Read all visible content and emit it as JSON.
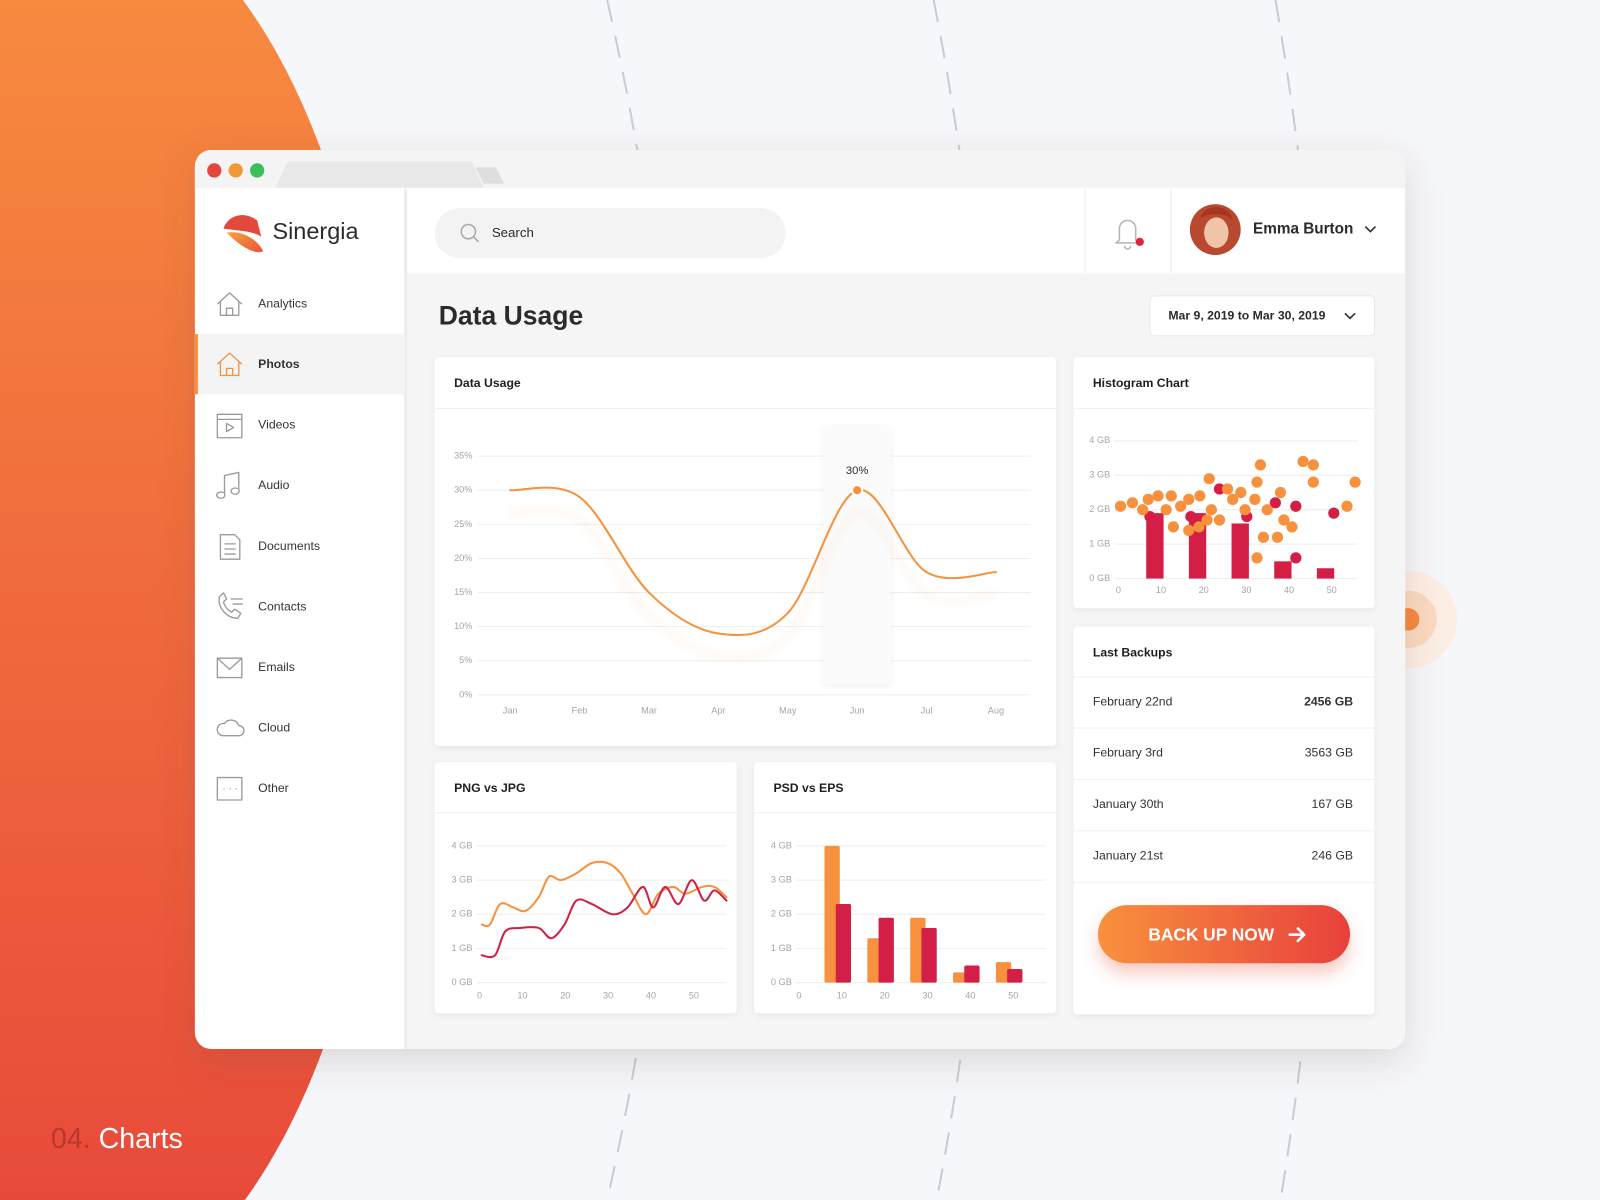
{
  "logo": "Sinergia",
  "nav": [
    {
      "label": "Analytics",
      "active": false
    },
    {
      "label": "Photos",
      "active": true
    },
    {
      "label": "Videos",
      "active": false
    },
    {
      "label": "Audio",
      "active": false
    },
    {
      "label": "Documents",
      "active": false
    },
    {
      "label": "Contacts",
      "active": false
    },
    {
      "label": "Emails",
      "active": false
    },
    {
      "label": "Cloud",
      "active": false
    },
    {
      "label": "Other",
      "active": false
    }
  ],
  "search": "Search",
  "user": "Emma Burton",
  "page_title": "Data Usage",
  "date_range": "Mar 9, 2019 to Mar 30, 2019",
  "backups": {
    "title": "Last Backups",
    "rows": [
      {
        "date": "February 22nd",
        "size": "2456 GB",
        "bold": true
      },
      {
        "date": "February 3rd",
        "size": "3563 GB",
        "bold": false
      },
      {
        "date": "January 30th",
        "size": "167 GB",
        "bold": false
      },
      {
        "date": "January 21st",
        "size": "246 GB",
        "bold": false
      }
    ]
  },
  "button": "BACK UP NOW",
  "footer": {
    "number": "04.",
    "label": "Charts"
  },
  "chart_data": [
    {
      "type": "line",
      "title": "Data Usage",
      "categories": [
        "Jan",
        "Feb",
        "Mar",
        "Apr",
        "May",
        "Jun",
        "Jul",
        "Aug"
      ],
      "series": [
        {
          "color": "#f7913d",
          "values": [
            30,
            29,
            15,
            9,
            12,
            30,
            18,
            18
          ],
          "value_labels": [
            null,
            null,
            null,
            null,
            null,
            "30%",
            null,
            null
          ]
        }
      ],
      "ylim": [
        0,
        35
      ],
      "yticks": [
        {
          "value": 0,
          "label": "0%"
        },
        {
          "value": 5,
          "label": "5%"
        },
        {
          "value": 10,
          "label": "10%"
        },
        {
          "value": 15,
          "label": "15%"
        },
        {
          "value": 20,
          "label": "20%"
        },
        {
          "value": 25,
          "label": "25%"
        },
        {
          "value": 30,
          "label": "30%"
        },
        {
          "value": 35,
          "label": "35%"
        }
      ],
      "grid": true
    },
    {
      "type": "scatter",
      "title": "Histogram Chart",
      "xlim": [
        0,
        57
      ],
      "xticks": [
        0,
        10,
        20,
        30,
        40,
        50
      ],
      "ylim": [
        0,
        4
      ],
      "yticks": [
        {
          "value": 0,
          "label": "0 GB"
        },
        {
          "value": 1,
          "label": "1 GB"
        },
        {
          "value": 2,
          "label": "2 GB"
        },
        {
          "value": 3,
          "label": "3 GB"
        },
        {
          "value": 4,
          "label": "4 GB"
        }
      ],
      "grid": true,
      "bars": {
        "color": "#d31f45",
        "x": [
          10,
          20,
          30,
          40,
          50
        ],
        "values": [
          1.9,
          1.9,
          1.6,
          0.5,
          0.3
        ]
      },
      "series": [
        {
          "color": "#d31f45",
          "x": [
            7.4,
            17,
            23.7,
            30.1,
            36.8,
            41.6,
            41.6,
            50.5
          ],
          "values": [
            1.8,
            1.8,
            2.6,
            1.8,
            2.2,
            2.1,
            0.6,
            1.9
          ]
        },
        {
          "color": "#f7913d",
          "x": [
            0.5,
            3.3,
            7,
            9.3,
            12.4,
            5.7,
            11.2,
            14.6,
            16.5,
            21.3,
            19.1,
            21.8,
            23.7,
            25.6,
            26.8,
            28.7,
            29.7,
            32.5,
            33.3,
            32,
            34.9,
            38,
            38.8,
            34,
            37.3,
            32.5,
            40.7,
            43.3,
            45.7,
            45.7,
            53.6,
            55.5,
            18.9,
            16.5,
            12.9,
            20.8
          ],
          "values": [
            2.1,
            2.2,
            2.3,
            2.4,
            2.4,
            2.0,
            2.0,
            2.1,
            2.3,
            2.9,
            2.4,
            2.0,
            1.7,
            2.6,
            2.3,
            2.5,
            2.0,
            2.8,
            3.3,
            2.3,
            2.0,
            2.5,
            1.7,
            1.2,
            1.2,
            0.6,
            1.5,
            3.4,
            3.3,
            2.8,
            2.1,
            2.8,
            1.5,
            1.4,
            1.5,
            1.7
          ]
        }
      ]
    },
    {
      "type": "line",
      "title": "PNG vs JPG",
      "xlim": [
        0,
        58
      ],
      "xticks": [
        0,
        10,
        20,
        30,
        40,
        50
      ],
      "ylim": [
        0,
        4
      ],
      "yticks": [
        {
          "value": 0,
          "label": "0 GB"
        },
        {
          "value": 1,
          "label": "1 GB"
        },
        {
          "value": 2,
          "label": "2 GB"
        },
        {
          "value": 3,
          "label": "3 GB"
        },
        {
          "value": 4,
          "label": "4 GB"
        }
      ],
      "grid": true,
      "series": [
        {
          "color": "#f7913d",
          "x": [
            0.5,
            2.4,
            4.8,
            7.9,
            10.7,
            13.8,
            16.2,
            19,
            22.6,
            26.2,
            29.8,
            32.9,
            35.7,
            38.8,
            41.7,
            45.2,
            48,
            51.9,
            54.8,
            57.6
          ],
          "values": [
            1.7,
            1.7,
            2.3,
            2.2,
            2.1,
            2.5,
            3.1,
            3.0,
            3.2,
            3.5,
            3.5,
            3.2,
            2.6,
            2.0,
            2.6,
            2.8,
            2.6,
            2.8,
            2.8,
            2.5
          ]
        },
        {
          "color": "#d31f45",
          "x": [
            0.5,
            3.6,
            6,
            9.5,
            13.8,
            16.7,
            19.8,
            22.6,
            26.2,
            31,
            34.5,
            38.1,
            40.5,
            43.3,
            46.4,
            49.5,
            52.4,
            54.8,
            57.6
          ],
          "values": [
            0.8,
            0.8,
            1.5,
            1.6,
            1.6,
            1.3,
            1.7,
            2.4,
            2.3,
            2.0,
            2.2,
            2.8,
            2.2,
            2.8,
            2.3,
            3.0,
            2.4,
            2.7,
            2.4
          ]
        }
      ]
    },
    {
      "type": "bar",
      "title": "PSD vs EPS",
      "x": [
        10,
        20,
        30,
        40,
        50
      ],
      "xlim": [
        0,
        58
      ],
      "xticks": [
        0,
        10,
        20,
        30,
        40,
        50
      ],
      "ylim": [
        0,
        4
      ],
      "yticks": [
        {
          "value": 0,
          "label": "0 GB"
        },
        {
          "value": 1,
          "label": "1 GB"
        },
        {
          "value": 2,
          "label": "2 GB"
        },
        {
          "value": 3,
          "label": "3 GB"
        },
        {
          "value": 4,
          "label": "4 GB"
        }
      ],
      "grid": true,
      "series": [
        {
          "color": "#f7913d",
          "values": [
            4.0,
            1.3,
            1.9,
            0.3,
            0.6
          ]
        },
        {
          "color": "#d31f45",
          "values": [
            2.3,
            1.9,
            1.6,
            0.5,
            0.4
          ]
        }
      ]
    }
  ]
}
